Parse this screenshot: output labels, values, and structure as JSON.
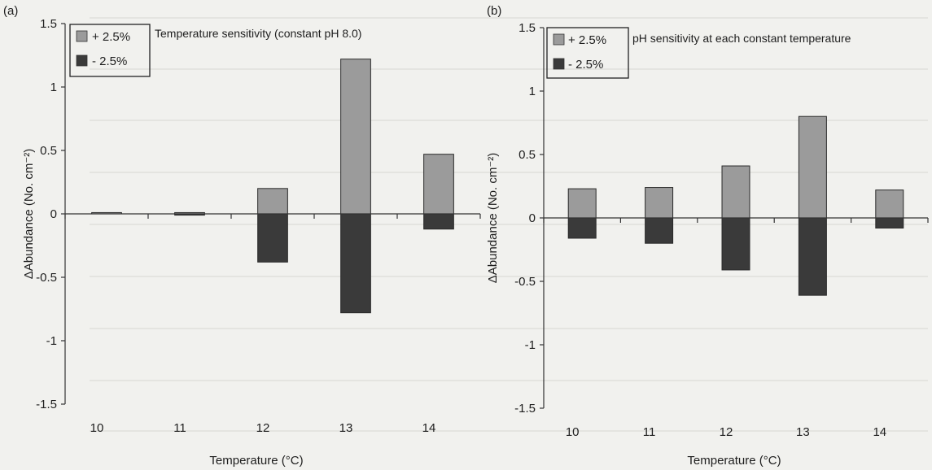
{
  "chart_data": [
    {
      "type": "bar",
      "panel_label": "(a)",
      "legend_title": "Temperature sensitivity (constant pH 8.0)",
      "xlabel": "Temperature (°C)",
      "ylabel": "ΔAbundance (No. cm⁻²)",
      "categories": [
        "10",
        "11",
        "12",
        "13",
        "14"
      ],
      "ylim": [
        -1.5,
        1.5
      ],
      "yticks": [
        "1.5",
        "1",
        "0.5",
        "0",
        "-0.5",
        "-1",
        "-1.5"
      ],
      "ytick_values": [
        1.5,
        1,
        0.5,
        0,
        -0.5,
        -1,
        -1.5
      ],
      "legend_position": "top-left",
      "series": [
        {
          "name": "+ 2.5%",
          "color": "#9b9b9b",
          "values": [
            0.01,
            0.01,
            0.2,
            1.22,
            0.47
          ]
        },
        {
          "name": "- 2.5%",
          "color": "#3a3a3a",
          "values": [
            0,
            -0.01,
            -0.38,
            -0.78,
            -0.12
          ]
        }
      ]
    },
    {
      "type": "bar",
      "panel_label": "(b)",
      "legend_title": "pH sensitivity at each constant temperature",
      "xlabel": "Temperature (°C)",
      "ylabel": "ΔAbundance (No. cm⁻²)",
      "categories": [
        "10",
        "11",
        "12",
        "13",
        "14"
      ],
      "ylim": [
        -1.5,
        1.5
      ],
      "yticks": [
        "1.5",
        "1",
        "0.5",
        "0",
        "-0.5",
        "-1",
        "-1.5"
      ],
      "ytick_values": [
        1.5,
        1,
        0.5,
        0,
        -0.5,
        -1,
        -1.5
      ],
      "legend_position": "top-left",
      "series": [
        {
          "name": "+ 2.5%",
          "color": "#9b9b9b",
          "values": [
            0.23,
            0.24,
            0.41,
            0.8,
            0.22
          ]
        },
        {
          "name": "- 2.5%",
          "color": "#3a3a3a",
          "values": [
            -0.16,
            -0.2,
            -0.41,
            -0.61,
            -0.08
          ]
        }
      ]
    }
  ]
}
